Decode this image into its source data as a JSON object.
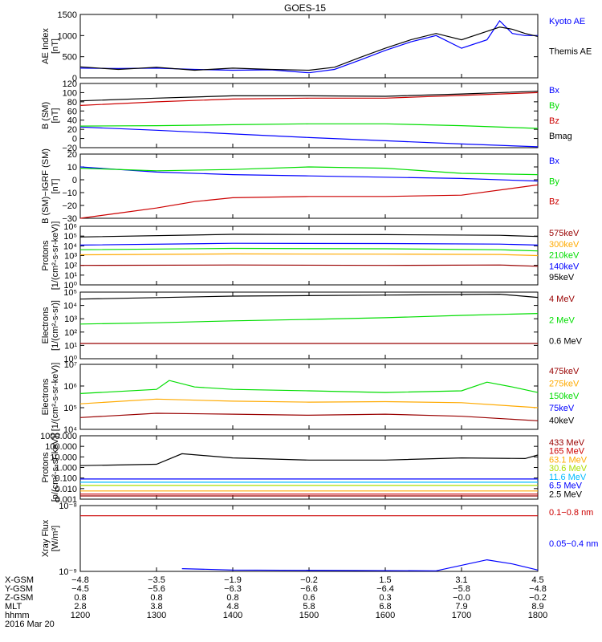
{
  "title": "GOES-15",
  "colors": {
    "black": "#000000",
    "blue": "#0000ff",
    "green": "#00dd00",
    "red": "#cc0000",
    "orange": "#ffaa00",
    "cyan": "#00bbff",
    "darkred": "#990000",
    "yellowgreen": "#aadd00"
  },
  "chart_data": [
    {
      "type": "line",
      "id": "ae",
      "ylabel": [
        "AE Index",
        "[nT]"
      ],
      "ylim": [
        0,
        1500
      ],
      "log": false,
      "yticks": [
        {
          "v": 0,
          "l": "0"
        },
        {
          "v": 500,
          "l": "500"
        },
        {
          "v": 1000,
          "l": "1000"
        },
        {
          "v": 1500,
          "l": "1500"
        }
      ],
      "legend": [
        {
          "label": "Kyoto AE",
          "color": "blue"
        },
        {
          "label": "Themis AE",
          "color": "black"
        }
      ],
      "series": [
        {
          "name": "Kyoto AE",
          "color": "blue",
          "x": [
            "12:00",
            "12:30",
            "13:00",
            "13:30",
            "14:00",
            "14:30",
            "15:00",
            "15:20",
            "15:40",
            "16:00",
            "16:20",
            "16:40",
            "17:00",
            "17:20",
            "17:30",
            "17:40",
            "17:50",
            "18:00"
          ],
          "y": [
            230,
            220,
            230,
            200,
            180,
            190,
            120,
            200,
            420,
            650,
            850,
            1000,
            700,
            900,
            1350,
            1050,
            1000,
            1000
          ]
        },
        {
          "name": "Themis AE",
          "color": "black",
          "x": [
            "12:00",
            "12:30",
            "13:00",
            "13:30",
            "14:00",
            "14:30",
            "15:00",
            "15:20",
            "15:40",
            "16:00",
            "16:20",
            "16:40",
            "17:00",
            "17:20",
            "17:30",
            "17:40",
            "17:50",
            "18:00"
          ],
          "y": [
            260,
            200,
            250,
            180,
            230,
            200,
            180,
            250,
            480,
            700,
            900,
            1050,
            900,
            1100,
            1200,
            1150,
            1050,
            980
          ]
        }
      ]
    },
    {
      "type": "line",
      "id": "bsm",
      "ylabel": [
        "B (SM)",
        "[nT]"
      ],
      "ylim": [
        -20,
        120
      ],
      "log": false,
      "yticks": [
        {
          "v": -20,
          "l": "−20"
        },
        {
          "v": 0,
          "l": "0"
        },
        {
          "v": 20,
          "l": "20"
        },
        {
          "v": 40,
          "l": "40"
        },
        {
          "v": 60,
          "l": "60"
        },
        {
          "v": 80,
          "l": "80"
        },
        {
          "v": 100,
          "l": "100"
        },
        {
          "v": 120,
          "l": "120"
        }
      ],
      "legend": [
        {
          "label": "Bx",
          "color": "blue"
        },
        {
          "label": "By",
          "color": "green"
        },
        {
          "label": "Bz",
          "color": "red"
        },
        {
          "label": "Bmag",
          "color": "black"
        }
      ],
      "series": [
        {
          "name": "Bx",
          "color": "blue",
          "x": [
            "12:00",
            "13:00",
            "14:00",
            "15:00",
            "16:00",
            "17:00",
            "18:00"
          ],
          "y": [
            25,
            18,
            10,
            2,
            -5,
            -12,
            -18
          ]
        },
        {
          "name": "By",
          "color": "green",
          "x": [
            "12:00",
            "13:00",
            "14:00",
            "15:00",
            "16:00",
            "17:00",
            "18:00"
          ],
          "y": [
            27,
            28,
            30,
            32,
            32,
            28,
            22
          ]
        },
        {
          "name": "Bz",
          "color": "red",
          "x": [
            "12:00",
            "13:00",
            "14:00",
            "15:00",
            "16:00",
            "17:00",
            "18:00"
          ],
          "y": [
            72,
            80,
            86,
            88,
            88,
            94,
            100
          ]
        },
        {
          "name": "Bmag",
          "color": "black",
          "x": [
            "12:00",
            "13:00",
            "14:00",
            "15:00",
            "16:00",
            "17:00",
            "18:00"
          ],
          "y": [
            82,
            88,
            93,
            93,
            92,
            97,
            103
          ]
        }
      ]
    },
    {
      "type": "line",
      "id": "bigrf",
      "ylabel": [
        "B (SM)−IGRF (SM)",
        "[nT]"
      ],
      "ylim": [
        -30,
        20
      ],
      "log": false,
      "yticks": [
        {
          "v": -30,
          "l": "−30"
        },
        {
          "v": -20,
          "l": "−20"
        },
        {
          "v": -10,
          "l": "−10"
        },
        {
          "v": 0,
          "l": "0"
        },
        {
          "v": 10,
          "l": "10"
        },
        {
          "v": 20,
          "l": "20"
        }
      ],
      "legend": [
        {
          "label": "Bx",
          "color": "blue"
        },
        {
          "label": "By",
          "color": "green"
        },
        {
          "label": "Bz",
          "color": "red"
        }
      ],
      "series": [
        {
          "name": "Bx",
          "color": "blue",
          "x": [
            "12:00",
            "13:00",
            "14:00",
            "15:00",
            "16:00",
            "17:00",
            "18:00"
          ],
          "y": [
            10,
            6,
            4,
            3,
            2,
            1,
            -1
          ]
        },
        {
          "name": "By",
          "color": "green",
          "x": [
            "12:00",
            "13:00",
            "14:00",
            "15:00",
            "16:00",
            "17:00",
            "18:00"
          ],
          "y": [
            9,
            7,
            8,
            10,
            9,
            5,
            4
          ]
        },
        {
          "name": "Bz",
          "color": "red",
          "x": [
            "12:00",
            "12:30",
            "13:00",
            "13:30",
            "14:00",
            "15:00",
            "16:00",
            "17:00",
            "18:00"
          ],
          "y": [
            -30,
            -26,
            -22,
            -17,
            -14,
            -13,
            -13,
            -12,
            -4
          ]
        }
      ]
    },
    {
      "type": "line",
      "id": "protons1",
      "ylabel": [
        "Protons",
        "[1/(cm²-s-sr-keV)]"
      ],
      "ylim": [
        1,
        1000000
      ],
      "log": true,
      "yticks": [
        {
          "v": 1,
          "l": "10⁰"
        },
        {
          "v": 10,
          "l": "10¹"
        },
        {
          "v": 100,
          "l": "10²"
        },
        {
          "v": 1000,
          "l": "10³"
        },
        {
          "v": 10000,
          "l": "10⁴"
        },
        {
          "v": 100000,
          "l": "10⁵"
        },
        {
          "v": 1000000,
          "l": "10⁶"
        }
      ],
      "legend": [
        {
          "label": "575keV",
          "color": "darkred"
        },
        {
          "label": "300keV",
          "color": "orange"
        },
        {
          "label": "210keV",
          "color": "green"
        },
        {
          "label": "140keV",
          "color": "blue"
        },
        {
          "label": "95keV",
          "color": "black"
        }
      ],
      "series": [
        {
          "name": "95keV",
          "color": "black",
          "x": [
            "12:00",
            "14:00",
            "16:00",
            "17:30",
            "18:00"
          ],
          "y": [
            80000,
            150000,
            140000,
            120000,
            90000
          ]
        },
        {
          "name": "140keV",
          "color": "blue",
          "x": [
            "12:00",
            "14:00",
            "16:00",
            "17:30",
            "18:00"
          ],
          "y": [
            12000,
            18000,
            17000,
            15000,
            12000
          ]
        },
        {
          "name": "210keV",
          "color": "green",
          "x": [
            "12:00",
            "14:00",
            "16:00",
            "17:30",
            "18:00"
          ],
          "y": [
            4000,
            5500,
            5000,
            4000,
            3000
          ]
        },
        {
          "name": "300keV",
          "color": "orange",
          "x": [
            "12:00",
            "14:00",
            "16:00",
            "17:30",
            "18:00"
          ],
          "y": [
            1200,
            1500,
            1400,
            1300,
            1000
          ]
        },
        {
          "name": "575keV",
          "color": "darkred",
          "x": [
            "12:00",
            "14:00",
            "16:00",
            "17:30",
            "18:00"
          ],
          "y": [
            100,
            110,
            100,
            110,
            80
          ]
        }
      ]
    },
    {
      "type": "line",
      "id": "electrons1",
      "ylabel": [
        "Electrons",
        "[1/(cm²-s-sr)]"
      ],
      "ylim": [
        1,
        100000
      ],
      "log": true,
      "yticks": [
        {
          "v": 1,
          "l": "10⁰"
        },
        {
          "v": 10,
          "l": "10¹"
        },
        {
          "v": 100,
          "l": "10²"
        },
        {
          "v": 1000,
          "l": "10³"
        },
        {
          "v": 10000,
          "l": "10⁴"
        },
        {
          "v": 100000,
          "l": "10⁵"
        }
      ],
      "legend": [
        {
          "label": "4 MeV",
          "color": "darkred"
        },
        {
          "label": "2 MeV",
          "color": "green"
        },
        {
          "label": "0.6 MeV",
          "color": "black"
        }
      ],
      "series": [
        {
          "name": "0.6 MeV",
          "color": "black",
          "x": [
            "12:00",
            "14:00",
            "16:00",
            "17:30",
            "18:00"
          ],
          "y": [
            30000,
            50000,
            60000,
            70000,
            40000
          ]
        },
        {
          "name": "2 MeV",
          "color": "green",
          "x": [
            "12:00",
            "13:00",
            "14:00",
            "15:00",
            "16:00",
            "17:00",
            "18:00"
          ],
          "y": [
            400,
            500,
            700,
            900,
            1200,
            1800,
            2500
          ]
        },
        {
          "name": "4 MeV",
          "color": "darkred",
          "x": [
            "12:00",
            "15:00",
            "18:00"
          ],
          "y": [
            14,
            14,
            14
          ]
        }
      ]
    },
    {
      "type": "line",
      "id": "electrons2",
      "ylabel": [
        "Electrons",
        "[1/(cm²-s-sr-keV)]"
      ],
      "ylim": [
        10000,
        10000000
      ],
      "log": true,
      "yticks": [
        {
          "v": 10000,
          "l": "10⁴"
        },
        {
          "v": 100000,
          "l": "10⁵"
        },
        {
          "v": 1000000,
          "l": "10⁶"
        },
        {
          "v": 10000000,
          "l": "10⁷"
        }
      ],
      "legend": [
        {
          "label": "475keV",
          "color": "darkred"
        },
        {
          "label": "275keV",
          "color": "orange"
        },
        {
          "label": "150keV",
          "color": "green"
        },
        {
          "label": "75keV",
          "color": "blue"
        },
        {
          "label": "40keV",
          "color": "black"
        }
      ],
      "series": [
        {
          "name": "150keV",
          "color": "green",
          "x": [
            "12:00",
            "13:00",
            "13:10",
            "13:30",
            "14:00",
            "15:00",
            "16:00",
            "17:00",
            "17:20",
            "17:40",
            "18:00"
          ],
          "y": [
            450000,
            700000,
            1800000,
            900000,
            700000,
            600000,
            500000,
            600000,
            1500000,
            900000,
            500000
          ]
        },
        {
          "name": "275keV",
          "color": "orange",
          "x": [
            "12:00",
            "13:00",
            "14:00",
            "15:00",
            "16:00",
            "17:00",
            "18:00"
          ],
          "y": [
            150000,
            250000,
            200000,
            180000,
            190000,
            170000,
            100000
          ]
        },
        {
          "name": "475keV",
          "color": "darkred",
          "x": [
            "12:00",
            "13:00",
            "14:00",
            "15:00",
            "16:00",
            "17:00",
            "18:00"
          ],
          "y": [
            35000,
            55000,
            50000,
            45000,
            50000,
            40000,
            25000
          ]
        }
      ]
    },
    {
      "type": "line",
      "id": "protons2",
      "ylabel": [
        "Protons",
        "[p/(cm²-s-sr-keV)]"
      ],
      "ylim": [
        0.001,
        1000
      ],
      "log": true,
      "yticks": [
        {
          "v": 0.001,
          "l": "0.001"
        },
        {
          "v": 0.01,
          "l": "0.010"
        },
        {
          "v": 0.1,
          "l": "0.100"
        },
        {
          "v": 1,
          "l": "1.000"
        },
        {
          "v": 10,
          "l": "10.000"
        },
        {
          "v": 100,
          "l": "100.000"
        },
        {
          "v": 1000,
          "l": "1000.000"
        }
      ],
      "legend": [
        {
          "label": "433 MeV",
          "color": "darkred"
        },
        {
          "label": "165 MeV",
          "color": "red"
        },
        {
          "label": "63.1 MeV",
          "color": "orange"
        },
        {
          "label": "30.6 MeV",
          "color": "yellowgreen"
        },
        {
          "label": "11.6 MeV",
          "color": "cyan"
        },
        {
          "label": "6.5 MeV",
          "color": "blue"
        },
        {
          "label": "2.5 MeV",
          "color": "black"
        }
      ],
      "series": [
        {
          "name": "2.5 MeV",
          "color": "black",
          "x": [
            "12:00",
            "13:00",
            "13:20",
            "14:00",
            "15:00",
            "16:00",
            "17:00",
            "17:50",
            "18:00"
          ],
          "y": [
            1.5,
            2,
            20,
            8,
            5,
            5,
            8,
            7,
            15
          ]
        },
        {
          "name": "6.5 MeV",
          "color": "blue",
          "x": [
            "12:00",
            "18:00"
          ],
          "y": [
            0.08,
            0.08
          ]
        },
        {
          "name": "11.6 MeV",
          "color": "cyan",
          "x": [
            "12:00",
            "18:00"
          ],
          "y": [
            0.04,
            0.04
          ]
        },
        {
          "name": "30.6 MeV",
          "color": "yellowgreen",
          "x": [
            "12:00",
            "18:00"
          ],
          "y": [
            0.02,
            0.02
          ]
        },
        {
          "name": "63.1 MeV",
          "color": "orange",
          "x": [
            "12:00",
            "18:00"
          ],
          "y": [
            0.006,
            0.006
          ]
        },
        {
          "name": "165 MeV",
          "color": "red",
          "x": [
            "12:00",
            "18:00"
          ],
          "y": [
            0.003,
            0.003
          ]
        },
        {
          "name": "433 MeV",
          "color": "darkred",
          "x": [
            "12:00",
            "18:00"
          ],
          "y": [
            0.002,
            0.002
          ]
        }
      ]
    },
    {
      "type": "line",
      "id": "xray",
      "ylabel": [
        "Xray Flux",
        "[W/m²]"
      ],
      "ylim": [
        1e-09,
        1e-08
      ],
      "log": true,
      "yticks": [
        {
          "v": 1e-09,
          "l": "10⁻⁹"
        },
        {
          "v": 1e-08,
          "l": "10⁻⁸"
        }
      ],
      "legend": [
        {
          "label": "0.1−0.8 nm",
          "color": "red"
        },
        {
          "label": "0.05−0.4 nm",
          "color": "blue"
        }
      ],
      "series": [
        {
          "name": "0.1−0.8 nm",
          "color": "red",
          "x": [
            "12:00",
            "18:00"
          ],
          "y": [
            7e-09,
            7e-09
          ]
        },
        {
          "name": "0.05−0.4 nm",
          "color": "blue",
          "x": [
            "13:20",
            "14:00",
            "16:40",
            "17:20",
            "17:40",
            "18:00"
          ],
          "y": [
            1.1e-09,
            1.05e-09,
            1.02e-09,
            1.5e-09,
            1.3e-09,
            1.05e-09
          ]
        }
      ]
    }
  ],
  "ticks": {
    "xgsm": [
      "−4.8",
      "−3.5",
      "−1.9",
      "−0.2",
      "1.5",
      "3.1",
      "4.5"
    ],
    "ygsm": [
      "−4.5",
      "−5.6",
      "−6.3",
      "−6.6",
      "−6.4",
      "−5.8",
      "−4.8"
    ],
    "zgsm": [
      "0.8",
      "0.8",
      "0.8",
      "0.6",
      "0.3",
      "−0.0",
      "−0.2"
    ],
    "mlt": [
      "2.8",
      "3.8",
      "4.8",
      "5.8",
      "6.8",
      "7.9",
      "8.9"
    ],
    "hhmm": [
      "1200",
      "1300",
      "1400",
      "1500",
      "1600",
      "1700",
      "1800"
    ]
  },
  "rowlabels": {
    "xgsm": "X-GSM",
    "ygsm": "Y-GSM",
    "zgsm": "Z-GSM",
    "mlt": "MLT",
    "hhmm": "hhmm",
    "date": "2016 Mar 20"
  }
}
